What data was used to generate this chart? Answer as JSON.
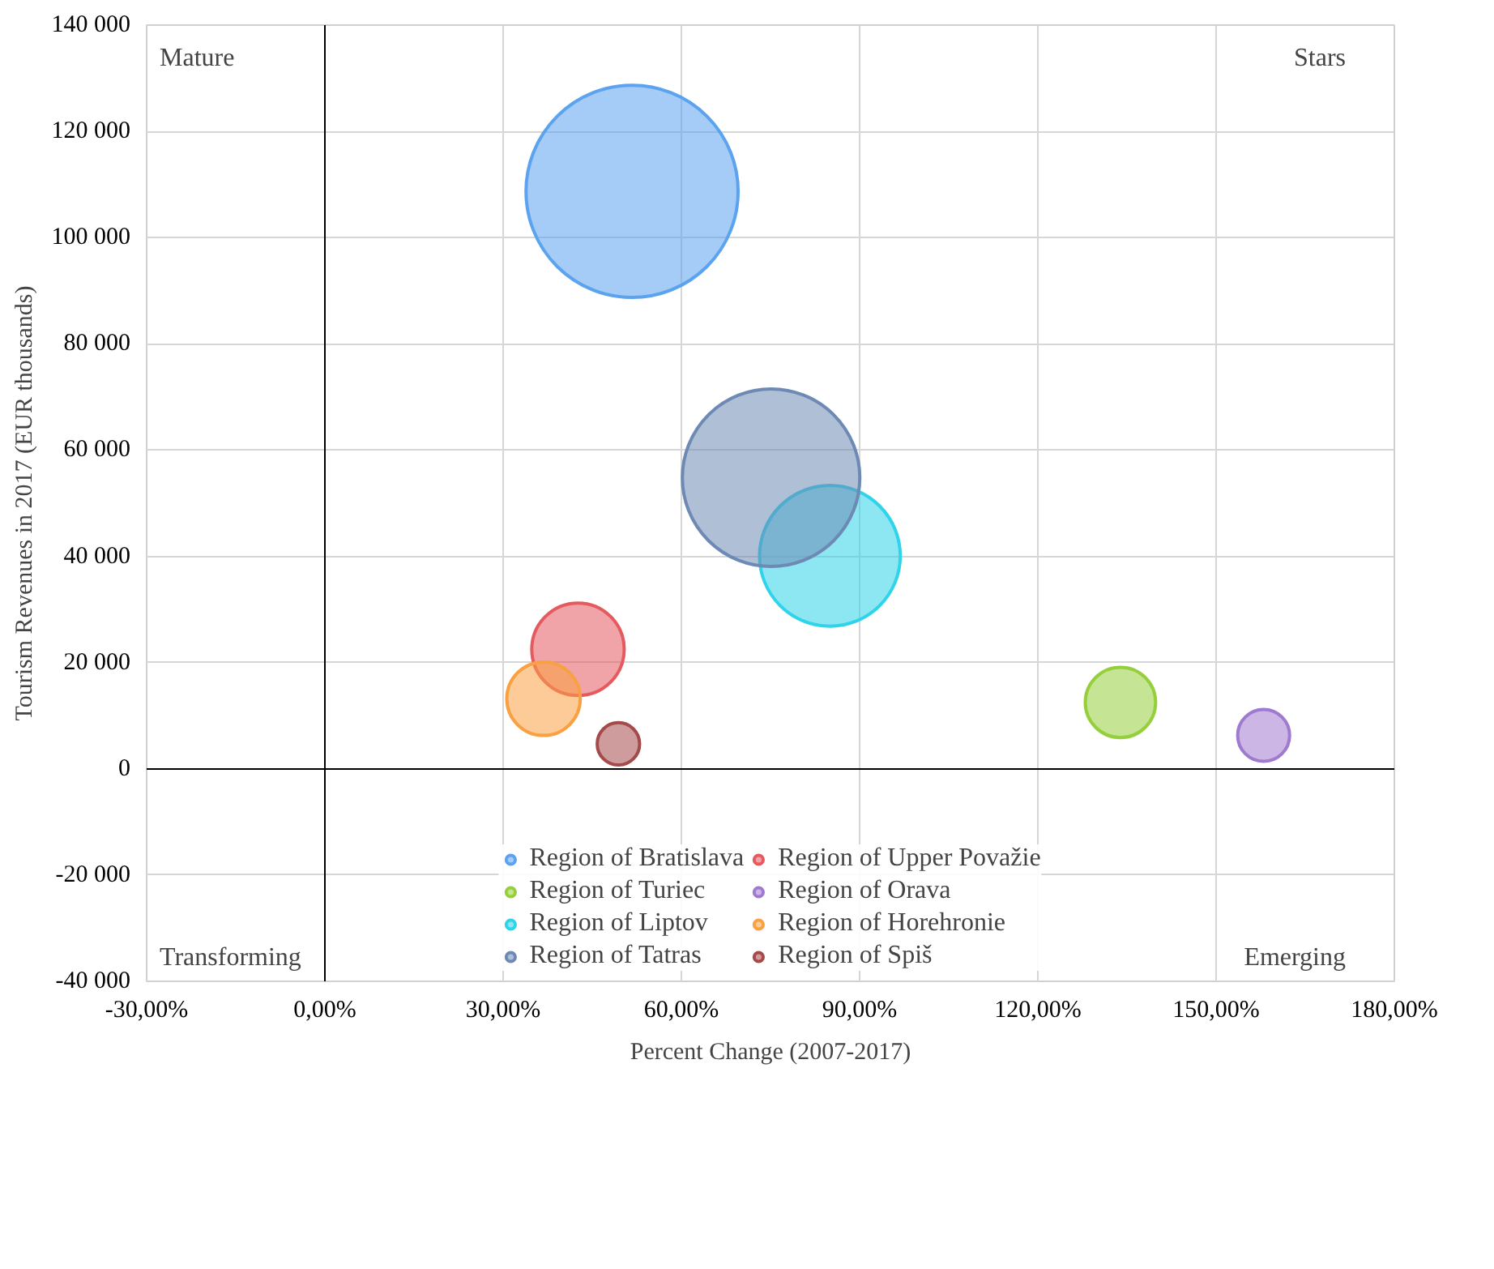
{
  "chart_data": {
    "type": "bubble",
    "xlabel": "Percent Change (2007-2017)",
    "ylabel": "Tourism Revenues in 2017 (EUR thousands)",
    "annotations": [
      "Mature",
      "Stars",
      "Transforming",
      "Emerging"
    ],
    "xlim": [
      -30,
      180
    ],
    "xticks": [
      {
        "value": -30,
        "label": "-30,00%"
      },
      {
        "value": 0,
        "label": "0,00%"
      },
      {
        "value": 30,
        "label": "30,00%"
      },
      {
        "value": 60,
        "label": "60,00%"
      },
      {
        "value": 90,
        "label": "90,00%"
      },
      {
        "value": 120,
        "label": "120,00%"
      },
      {
        "value": 150,
        "label": "150,00%"
      },
      {
        "value": 180,
        "label": "180,00%"
      }
    ],
    "ylim": [
      -40000,
      140000
    ],
    "yticks": [
      {
        "value": -40000,
        "label": "-40 000"
      },
      {
        "value": -20000,
        "label": "-20 000"
      },
      0,
      {
        "value": 20000,
        "label": "20 000"
      },
      {
        "value": 40000,
        "label": "40 000"
      },
      {
        "value": 60000,
        "label": "60 000"
      },
      {
        "value": 80000,
        "label": "80 000"
      },
      {
        "value": 100000,
        "label": "100 000"
      },
      {
        "value": 120000,
        "label": "120 000"
      },
      {
        "value": 140000,
        "label": "140 000"
      }
    ],
    "grid": true,
    "legend": "bottom",
    "series": [
      {
        "name": "Region of Bratislava",
        "color": "#5ba3ee",
        "x": [
          51.7
        ],
        "values": [
          108700
        ],
        "sizes": [
          1
        ]
      },
      {
        "name": "Region of Upper Považie",
        "color": "#e45a5f",
        "x": [
          42.6
        ],
        "values": [
          22500
        ],
        "sizes": [
          0.19
        ]
      },
      {
        "name": "Region of Turiec",
        "color": "#95cf3c",
        "x": [
          133.9
        ],
        "values": [
          12500
        ],
        "sizes": [
          0.11
        ]
      },
      {
        "name": "Region of Orava",
        "color": "#a07ad0",
        "x": [
          158
        ],
        "values": [
          6300
        ],
        "sizes": [
          0.06
        ]
      },
      {
        "name": "Region of Liptov",
        "color": "#2fd3ea",
        "x": [
          85
        ],
        "values": [
          40100
        ],
        "sizes": [
          0.44
        ]
      },
      {
        "name": "Region of Horehronie",
        "color": "#f9a142",
        "x": [
          36.8
        ],
        "values": [
          13200
        ],
        "sizes": [
          0.12
        ]
      },
      {
        "name": "Region of Tatras",
        "color": "#6d8ab5",
        "x": [
          75.1
        ],
        "values": [
          54800
        ],
        "sizes": [
          0.7
        ]
      },
      {
        "name": "Region of Spiš",
        "color": "#a54a4a",
        "x": [
          49.4
        ],
        "values": [
          4700
        ],
        "sizes": [
          0.04
        ]
      }
    ]
  }
}
